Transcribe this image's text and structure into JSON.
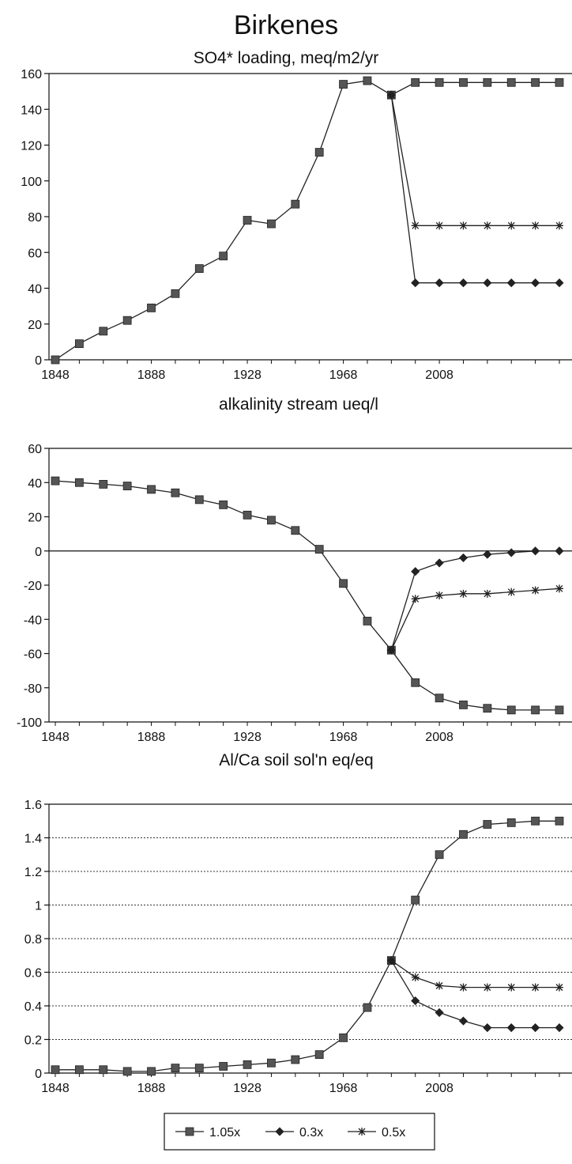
{
  "title": "Birkenes",
  "legend": {
    "entries": [
      {
        "label": "1.05x",
        "marker": "square"
      },
      {
        "label": "0.3x",
        "marker": "diamond"
      },
      {
        "label": "0.5x",
        "marker": "asterisk"
      }
    ],
    "placement": "bottom-center"
  },
  "chart_data": [
    {
      "type": "line",
      "title": "SO4* loading, meq/m2/yr",
      "x_ticks": [
        "1848",
        "1888",
        "1928",
        "1968",
        "2008"
      ],
      "y_ticks": [
        "0",
        "20",
        "40",
        "60",
        "80",
        "100",
        "120",
        "140",
        "160"
      ],
      "xlim": [
        1848,
        2058
      ],
      "ylim": [
        0,
        160
      ],
      "grid": false,
      "zero_line": false,
      "series": [
        {
          "name": "1.05x",
          "marker": "square",
          "x": [
            1848,
            1858,
            1868,
            1878,
            1888,
            1898,
            1908,
            1918,
            1928,
            1938,
            1948,
            1958,
            1968,
            1978,
            1988,
            1998,
            2008,
            2018,
            2028,
            2038,
            2048,
            2058
          ],
          "y": [
            0,
            9,
            16,
            22,
            29,
            37,
            51,
            58,
            78,
            76,
            87,
            116,
            154,
            156,
            148,
            155,
            155,
            155,
            155,
            155,
            155,
            155
          ]
        },
        {
          "name": "0.3x",
          "marker": "diamond",
          "x": [
            1988,
            1998,
            2008,
            2018,
            2028,
            2038,
            2048,
            2058
          ],
          "y": [
            148,
            43,
            43,
            43,
            43,
            43,
            43,
            43
          ]
        },
        {
          "name": "0.5x",
          "marker": "asterisk",
          "x": [
            1988,
            1998,
            2008,
            2018,
            2028,
            2038,
            2048,
            2058
          ],
          "y": [
            148,
            75,
            75,
            75,
            75,
            75,
            75,
            75
          ]
        }
      ]
    },
    {
      "type": "line",
      "title": "alkalinity stream ueq/l",
      "x_ticks": [
        "1848",
        "1888",
        "1928",
        "1968",
        "2008"
      ],
      "y_ticks": [
        "60",
        "40",
        "20",
        "0",
        "-20",
        "-40",
        "-60",
        "-80",
        "-100"
      ],
      "xlim": [
        1848,
        2058
      ],
      "ylim": [
        -100,
        60
      ],
      "grid": false,
      "zero_line": true,
      "series": [
        {
          "name": "1.05x",
          "marker": "square",
          "x": [
            1848,
            1858,
            1868,
            1878,
            1888,
            1898,
            1908,
            1918,
            1928,
            1938,
            1948,
            1958,
            1968,
            1978,
            1988,
            1998,
            2008,
            2018,
            2028,
            2038,
            2048,
            2058
          ],
          "y": [
            41,
            40,
            39,
            38,
            36,
            34,
            30,
            27,
            21,
            18,
            12,
            1,
            -19,
            -41,
            -58,
            -77,
            -86,
            -90,
            -92,
            -93,
            -93,
            -93
          ]
        },
        {
          "name": "0.3x",
          "marker": "diamond",
          "x": [
            1988,
            1998,
            2008,
            2018,
            2028,
            2038,
            2048,
            2058
          ],
          "y": [
            -58,
            -12,
            -7,
            -4,
            -2,
            -1,
            0,
            0
          ]
        },
        {
          "name": "0.5x",
          "marker": "asterisk",
          "x": [
            1988,
            1998,
            2008,
            2018,
            2028,
            2038,
            2048,
            2058
          ],
          "y": [
            -58,
            -28,
            -26,
            -25,
            -25,
            -24,
            -23,
            -22
          ]
        }
      ]
    },
    {
      "type": "line",
      "title": "Al/Ca soil sol'n eq/eq",
      "x_ticks": [
        "1848",
        "1888",
        "1928",
        "1968",
        "2008"
      ],
      "y_ticks": [
        "0",
        "0.2",
        "0.4",
        "0.6",
        "0.8",
        "1",
        "1.2",
        "1.4",
        "1.6"
      ],
      "xlim": [
        1848,
        2058
      ],
      "ylim": [
        0,
        1.6
      ],
      "grid": true,
      "zero_line": false,
      "series": [
        {
          "name": "1.05x",
          "marker": "square",
          "x": [
            1848,
            1858,
            1868,
            1878,
            1888,
            1898,
            1908,
            1918,
            1928,
            1938,
            1948,
            1958,
            1968,
            1978,
            1988,
            1998,
            2008,
            2018,
            2028,
            2038,
            2048,
            2058
          ],
          "y": [
            0.02,
            0.02,
            0.02,
            0.01,
            0.01,
            0.03,
            0.03,
            0.04,
            0.05,
            0.06,
            0.08,
            0.11,
            0.21,
            0.39,
            0.67,
            1.03,
            1.3,
            1.42,
            1.48,
            1.49,
            1.5,
            1.5
          ]
        },
        {
          "name": "0.3x",
          "marker": "diamond",
          "x": [
            1988,
            1998,
            2008,
            2018,
            2028,
            2038,
            2048,
            2058
          ],
          "y": [
            0.67,
            0.43,
            0.36,
            0.31,
            0.27,
            0.27,
            0.27,
            0.27
          ]
        },
        {
          "name": "0.5x",
          "marker": "asterisk",
          "x": [
            1988,
            1998,
            2008,
            2018,
            2028,
            2038,
            2048,
            2058
          ],
          "y": [
            0.67,
            0.57,
            0.52,
            0.51,
            0.51,
            0.51,
            0.51,
            0.51
          ]
        }
      ]
    }
  ]
}
